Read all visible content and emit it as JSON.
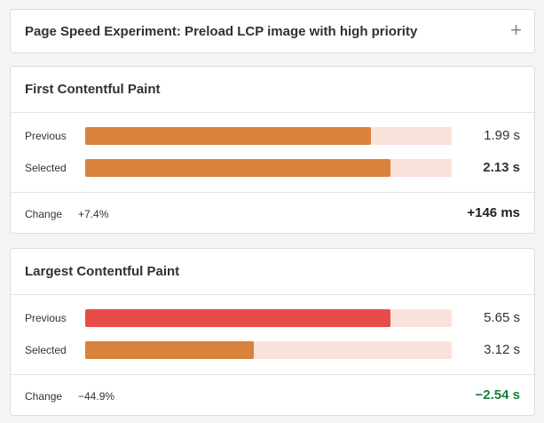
{
  "header": {
    "title": "Page Speed Experiment: Preload LCP image with high priority"
  },
  "metrics": [
    {
      "title": "First Contentful Paint",
      "rows": [
        {
          "label": "Previous",
          "value": 1.99,
          "value_label": "1.99 s",
          "color": "#d9823b",
          "bold": false
        },
        {
          "label": "Selected",
          "value": 2.13,
          "value_label": "2.13 s",
          "color": "#d9823b",
          "bold": true
        }
      ],
      "change": {
        "label": "Change",
        "percent": "+7.4%",
        "delta": "+146 ms",
        "color": "#202124"
      }
    },
    {
      "title": "Largest Contentful Paint",
      "rows": [
        {
          "label": "Previous",
          "value": 5.65,
          "value_label": "5.65 s",
          "color": "#e84c48",
          "bold": false
        },
        {
          "label": "Selected",
          "value": 3.12,
          "value_label": "3.12 s",
          "color": "#d9823b",
          "bold": false
        }
      ],
      "change": {
        "label": "Change",
        "percent": "−44.9%",
        "delta": "−2.54 s",
        "color": "#188038"
      }
    }
  ]
}
